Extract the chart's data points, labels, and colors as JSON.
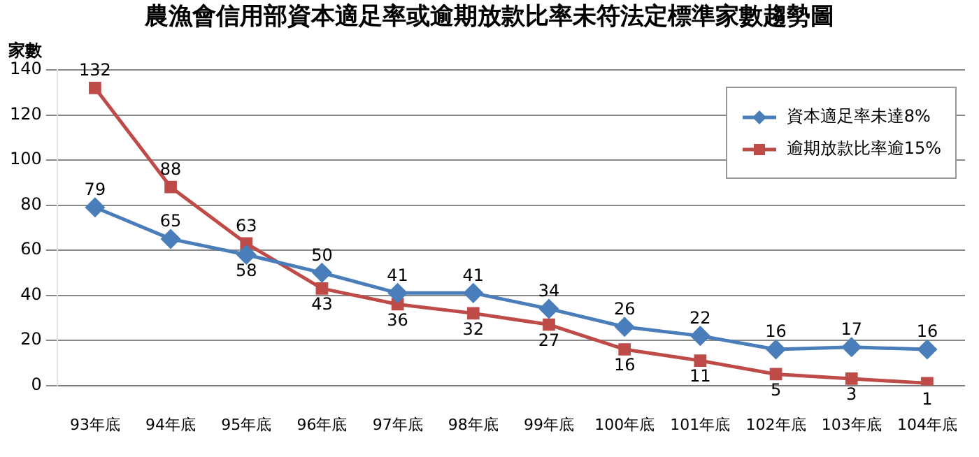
{
  "chart_data": {
    "type": "line",
    "title": "農漁會信用部資本適足率或逾期放款比率未符法定標準家數趨勢圖",
    "ylabel": "家數",
    "categories": [
      "93年底",
      "94年底",
      "95年底",
      "96年底",
      "97年底",
      "98年底",
      "99年底",
      "100年底",
      "101年底",
      "102年底",
      "103年底",
      "104年底"
    ],
    "series": [
      {
        "name": "資本適足率未達8%",
        "color": "#4a7ebb",
        "marker": "diamond",
        "values": [
          79,
          65,
          58,
          50,
          41,
          41,
          34,
          26,
          22,
          16,
          17,
          16
        ]
      },
      {
        "name": "逾期放款比率逾15%",
        "color": "#be4b48",
        "marker": "square",
        "values": [
          132,
          88,
          63,
          43,
          36,
          32,
          27,
          16,
          11,
          5,
          3,
          1
        ]
      }
    ],
    "ylim": [
      0,
      140
    ],
    "yticks": [
      0,
      20,
      40,
      60,
      80,
      100,
      120,
      140
    ],
    "grid": "y",
    "legend": "top right",
    "data_labels": true
  }
}
